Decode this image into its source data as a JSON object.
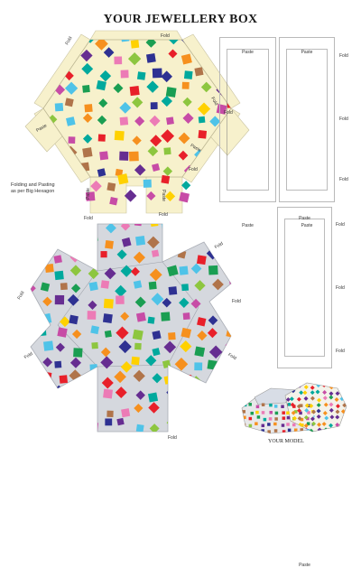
{
  "title": "YOUR JEWELLERY BOX",
  "labels": {
    "fold": "Fold",
    "paste": "Paste",
    "note": "Folding and Pasting as per Big Hexagon",
    "model": "YOUR MODEL"
  },
  "colors": {
    "hexagon_lid": "#f7f1cc",
    "hexagon_base": "#d5d8de",
    "strip_yellow": "#fbf8b9",
    "strip_blue": "#bfe3f7",
    "strip_pink": "#f6c7e7",
    "squares": [
      "#e8202a",
      "#f6901e",
      "#ffd100",
      "#8dc63f",
      "#1a9e52",
      "#00a99d",
      "#4fc3e8",
      "#2e3192",
      "#662d91",
      "#c74ca6",
      "#ec7bb6",
      "#b0744a"
    ]
  }
}
